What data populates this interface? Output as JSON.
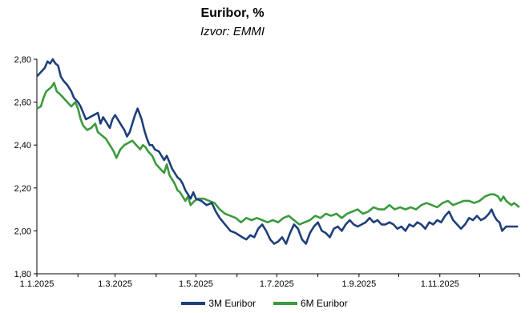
{
  "chart_data": {
    "type": "line",
    "title": "Euribor, %",
    "subtitle": "Izvor: EMMI",
    "xlabel": "",
    "ylabel": "",
    "ylim": [
      1.8,
      2.8
    ],
    "y_ticks": [
      "2,80",
      "2,60",
      "2,40",
      "2,20",
      "2,00",
      "1,80"
    ],
    "x_ticks": [
      "1.1.2025",
      "1.3.2025",
      "1.5.2025",
      "1.7.2025",
      "1.9.2025",
      "1.11.2025"
    ],
    "x_range_days": [
      0,
      364
    ],
    "legend_position": "bottom",
    "series": [
      {
        "name": "3M Euribor",
        "color": "#1f3f7a",
        "points": [
          [
            0,
            2.72
          ],
          [
            3,
            2.74
          ],
          [
            6,
            2.76
          ],
          [
            8,
            2.79
          ],
          [
            10,
            2.78
          ],
          [
            12,
            2.8
          ],
          [
            14,
            2.78
          ],
          [
            16,
            2.77
          ],
          [
            18,
            2.72
          ],
          [
            20,
            2.7
          ],
          [
            23,
            2.68
          ],
          [
            26,
            2.65
          ],
          [
            28,
            2.62
          ],
          [
            31,
            2.6
          ],
          [
            33,
            2.58
          ],
          [
            35,
            2.55
          ],
          [
            37,
            2.52
          ],
          [
            40,
            2.53
          ],
          [
            43,
            2.54
          ],
          [
            46,
            2.55
          ],
          [
            48,
            2.5
          ],
          [
            50,
            2.53
          ],
          [
            52,
            2.51
          ],
          [
            55,
            2.48
          ],
          [
            57,
            2.52
          ],
          [
            59,
            2.54
          ],
          [
            62,
            2.51
          ],
          [
            64,
            2.49
          ],
          [
            66,
            2.47
          ],
          [
            68,
            2.44
          ],
          [
            70,
            2.46
          ],
          [
            72,
            2.5
          ],
          [
            74,
            2.54
          ],
          [
            76,
            2.57
          ],
          [
            79,
            2.52
          ],
          [
            81,
            2.47
          ],
          [
            83,
            2.43
          ],
          [
            85,
            2.4
          ],
          [
            87,
            2.4
          ],
          [
            89,
            2.38
          ],
          [
            92,
            2.37
          ],
          [
            94,
            2.35
          ],
          [
            96,
            2.33
          ],
          [
            98,
            2.35
          ],
          [
            100,
            2.32
          ],
          [
            102,
            2.29
          ],
          [
            104,
            2.27
          ],
          [
            106,
            2.25
          ],
          [
            108,
            2.24
          ],
          [
            110,
            2.22
          ],
          [
            112,
            2.19
          ],
          [
            114,
            2.17
          ],
          [
            116,
            2.15
          ],
          [
            118,
            2.18
          ],
          [
            120,
            2.15
          ],
          [
            124,
            2.14
          ],
          [
            128,
            2.12
          ],
          [
            132,
            2.13
          ],
          [
            135,
            2.09
          ],
          [
            138,
            2.06
          ],
          [
            142,
            2.03
          ],
          [
            146,
            2.0
          ],
          [
            150,
            1.99
          ],
          [
            155,
            1.97
          ],
          [
            158,
            1.96
          ],
          [
            161,
            1.98
          ],
          [
            164,
            1.97
          ],
          [
            167,
            2.01
          ],
          [
            170,
            2.03
          ],
          [
            173,
            2.0
          ],
          [
            176,
            1.96
          ],
          [
            179,
            1.94
          ],
          [
            182,
            1.95
          ],
          [
            185,
            1.97
          ],
          [
            188,
            1.94
          ],
          [
            191,
            1.99
          ],
          [
            194,
            2.03
          ],
          [
            197,
            2.01
          ],
          [
            200,
            1.96
          ],
          [
            203,
            1.94
          ],
          [
            206,
            1.99
          ],
          [
            209,
            2.02
          ],
          [
            212,
            2.04
          ],
          [
            215,
            2.0
          ],
          [
            218,
            1.99
          ],
          [
            221,
            1.97
          ],
          [
            224,
            2.01
          ],
          [
            227,
            2.02
          ],
          [
            230,
            2.0
          ],
          [
            233,
            2.03
          ],
          [
            236,
            2.05
          ],
          [
            239,
            2.03
          ],
          [
            242,
            2.02
          ],
          [
            245,
            2.03
          ],
          [
            248,
            2.04
          ],
          [
            251,
            2.06
          ],
          [
            254,
            2.04
          ],
          [
            257,
            2.05
          ],
          [
            260,
            2.03
          ],
          [
            263,
            2.03
          ],
          [
            266,
            2.04
          ],
          [
            269,
            2.03
          ],
          [
            272,
            2.01
          ],
          [
            275,
            2.02
          ],
          [
            278,
            2.0
          ],
          [
            281,
            2.03
          ],
          [
            284,
            2.02
          ],
          [
            287,
            2.04
          ],
          [
            290,
            2.03
          ],
          [
            293,
            2.01
          ],
          [
            296,
            2.04
          ],
          [
            299,
            2.03
          ],
          [
            302,
            2.05
          ],
          [
            305,
            2.04
          ],
          [
            308,
            2.07
          ],
          [
            311,
            2.09
          ],
          [
            314,
            2.05
          ],
          [
            317,
            2.03
          ],
          [
            320,
            2.01
          ],
          [
            323,
            2.03
          ],
          [
            326,
            2.06
          ],
          [
            329,
            2.05
          ],
          [
            332,
            2.07
          ],
          [
            335,
            2.05
          ],
          [
            338,
            2.06
          ],
          [
            341,
            2.08
          ],
          [
            343,
            2.1
          ],
          [
            345,
            2.07
          ],
          [
            347,
            2.05
          ],
          [
            349,
            2.04
          ],
          [
            351,
            2.0
          ],
          [
            354,
            2.02
          ],
          [
            357,
            2.02
          ],
          [
            360,
            2.02
          ],
          [
            363,
            2.02
          ]
        ]
      },
      {
        "name": "6M Euribor",
        "color": "#3a9a3d",
        "points": [
          [
            0,
            2.57
          ],
          [
            3,
            2.58
          ],
          [
            5,
            2.62
          ],
          [
            7,
            2.65
          ],
          [
            9,
            2.66
          ],
          [
            11,
            2.67
          ],
          [
            13,
            2.69
          ],
          [
            15,
            2.65
          ],
          [
            17,
            2.64
          ],
          [
            20,
            2.62
          ],
          [
            23,
            2.6
          ],
          [
            26,
            2.58
          ],
          [
            29,
            2.6
          ],
          [
            31,
            2.57
          ],
          [
            33,
            2.52
          ],
          [
            35,
            2.49
          ],
          [
            38,
            2.47
          ],
          [
            41,
            2.48
          ],
          [
            44,
            2.5
          ],
          [
            46,
            2.46
          ],
          [
            48,
            2.45
          ],
          [
            50,
            2.44
          ],
          [
            52,
            2.43
          ],
          [
            55,
            2.4
          ],
          [
            58,
            2.37
          ],
          [
            60,
            2.34
          ],
          [
            63,
            2.38
          ],
          [
            66,
            2.4
          ],
          [
            69,
            2.41
          ],
          [
            72,
            2.42
          ],
          [
            75,
            2.4
          ],
          [
            78,
            2.38
          ],
          [
            80,
            2.4
          ],
          [
            82,
            2.39
          ],
          [
            84,
            2.37
          ],
          [
            87,
            2.35
          ],
          [
            90,
            2.31
          ],
          [
            93,
            2.29
          ],
          [
            96,
            2.27
          ],
          [
            98,
            2.31
          ],
          [
            100,
            2.26
          ],
          [
            102,
            2.24
          ],
          [
            104,
            2.22
          ],
          [
            106,
            2.19
          ],
          [
            108,
            2.18
          ],
          [
            110,
            2.16
          ],
          [
            112,
            2.14
          ],
          [
            114,
            2.16
          ],
          [
            116,
            2.12
          ],
          [
            119,
            2.14
          ],
          [
            122,
            2.15
          ],
          [
            126,
            2.15
          ],
          [
            130,
            2.14
          ],
          [
            134,
            2.13
          ],
          [
            138,
            2.1
          ],
          [
            142,
            2.08
          ],
          [
            146,
            2.07
          ],
          [
            150,
            2.06
          ],
          [
            154,
            2.04
          ],
          [
            158,
            2.06
          ],
          [
            162,
            2.05
          ],
          [
            166,
            2.06
          ],
          [
            170,
            2.05
          ],
          [
            174,
            2.04
          ],
          [
            178,
            2.05
          ],
          [
            182,
            2.04
          ],
          [
            186,
            2.06
          ],
          [
            190,
            2.07
          ],
          [
            194,
            2.05
          ],
          [
            198,
            2.03
          ],
          [
            202,
            2.04
          ],
          [
            206,
            2.05
          ],
          [
            210,
            2.07
          ],
          [
            214,
            2.06
          ],
          [
            218,
            2.08
          ],
          [
            222,
            2.07
          ],
          [
            226,
            2.08
          ],
          [
            230,
            2.06
          ],
          [
            234,
            2.08
          ],
          [
            238,
            2.09
          ],
          [
            242,
            2.1
          ],
          [
            246,
            2.08
          ],
          [
            250,
            2.09
          ],
          [
            254,
            2.11
          ],
          [
            258,
            2.1
          ],
          [
            262,
            2.1
          ],
          [
            266,
            2.12
          ],
          [
            270,
            2.1
          ],
          [
            274,
            2.11
          ],
          [
            278,
            2.1
          ],
          [
            282,
            2.11
          ],
          [
            286,
            2.1
          ],
          [
            290,
            2.12
          ],
          [
            294,
            2.13
          ],
          [
            298,
            2.12
          ],
          [
            302,
            2.11
          ],
          [
            306,
            2.13
          ],
          [
            310,
            2.14
          ],
          [
            314,
            2.12
          ],
          [
            318,
            2.13
          ],
          [
            322,
            2.14
          ],
          [
            326,
            2.14
          ],
          [
            330,
            2.13
          ],
          [
            334,
            2.14
          ],
          [
            338,
            2.16
          ],
          [
            342,
            2.17
          ],
          [
            345,
            2.17
          ],
          [
            348,
            2.16
          ],
          [
            350,
            2.14
          ],
          [
            352,
            2.16
          ],
          [
            354,
            2.14
          ],
          [
            356,
            2.13
          ],
          [
            358,
            2.12
          ],
          [
            360,
            2.13
          ],
          [
            362,
            2.12
          ],
          [
            364,
            2.11
          ]
        ]
      }
    ]
  }
}
